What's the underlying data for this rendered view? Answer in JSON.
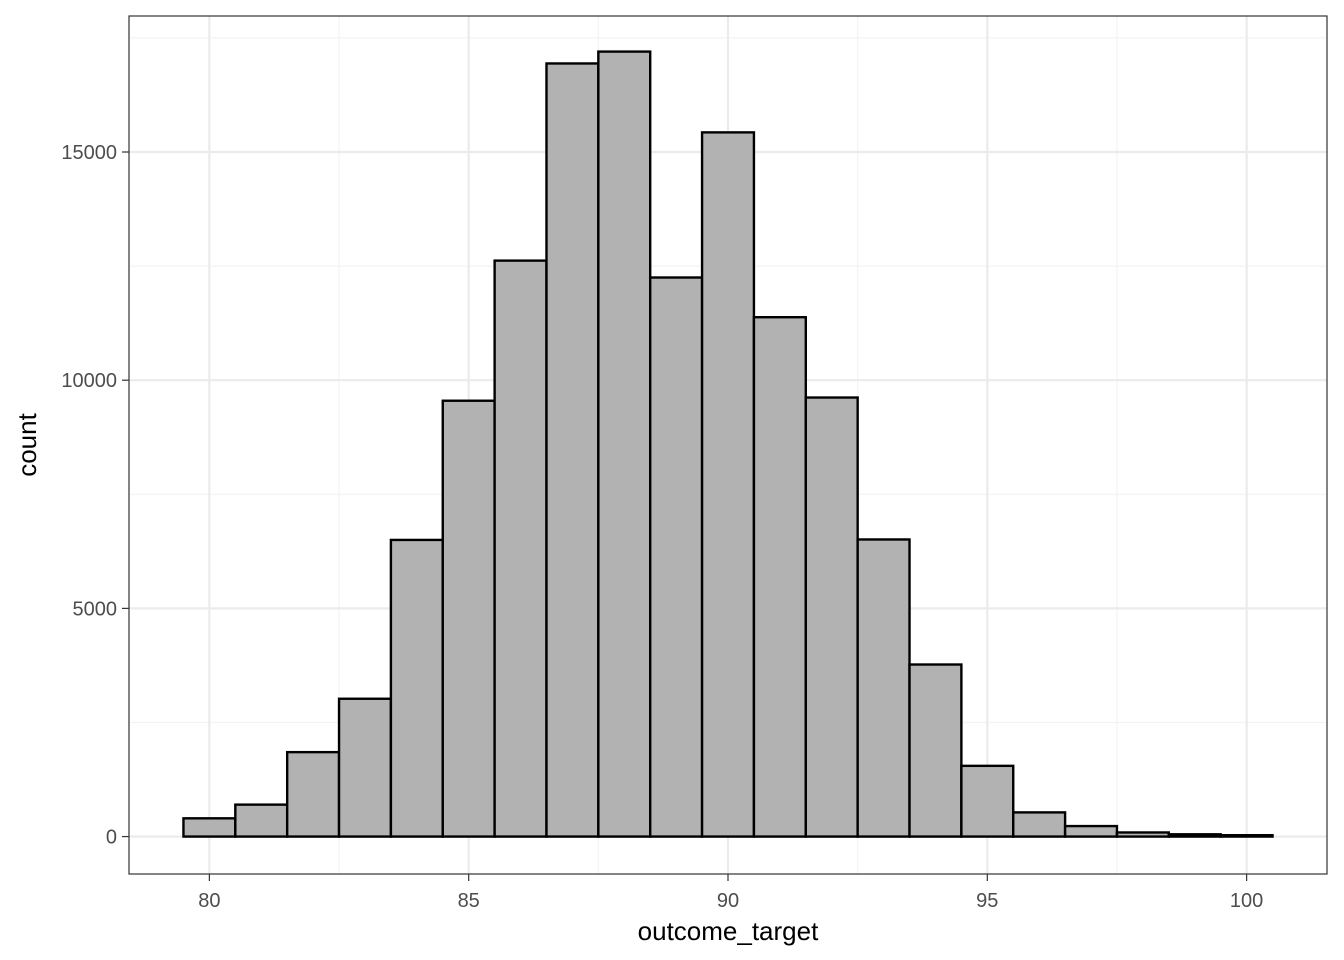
{
  "chart_data": {
    "type": "bar",
    "subtype": "histogram",
    "xlabel": "outcome_target",
    "ylabel": "count",
    "xlim": [
      78.45,
      101.55
    ],
    "ylim": [
      -820,
      17980
    ],
    "x_ticks": [
      80,
      85,
      90,
      95,
      100
    ],
    "y_ticks": [
      0,
      5000,
      10000,
      15000
    ],
    "bin_width": 1,
    "bins": [
      {
        "center": 80,
        "count": 400
      },
      {
        "center": 81,
        "count": 700
      },
      {
        "center": 82,
        "count": 1850
      },
      {
        "center": 83,
        "count": 3020
      },
      {
        "center": 84,
        "count": 6500
      },
      {
        "center": 85,
        "count": 9550
      },
      {
        "center": 86,
        "count": 12620
      },
      {
        "center": 87,
        "count": 16940
      },
      {
        "center": 88,
        "count": 17200
      },
      {
        "center": 89,
        "count": 12250
      },
      {
        "center": 90,
        "count": 15430
      },
      {
        "center": 91,
        "count": 11380
      },
      {
        "center": 92,
        "count": 9620
      },
      {
        "center": 93,
        "count": 6510
      },
      {
        "center": 94,
        "count": 3770
      },
      {
        "center": 95,
        "count": 1550
      },
      {
        "center": 96,
        "count": 530
      },
      {
        "center": 97,
        "count": 230
      },
      {
        "center": 98,
        "count": 90
      },
      {
        "center": 99,
        "count": 50
      },
      {
        "center": 100,
        "count": 30
      }
    ],
    "grid": true,
    "legend": "none",
    "colors": {
      "bar_fill": "#b2b2b2",
      "bar_stroke": "#000000",
      "panel_background": "#ffffff",
      "panel_border": "#333333",
      "grid_major": "#ebebeb",
      "grid_minor": "#f3f3f3",
      "tick_text": "#4d4d4d",
      "axis_title": "#000000"
    }
  }
}
